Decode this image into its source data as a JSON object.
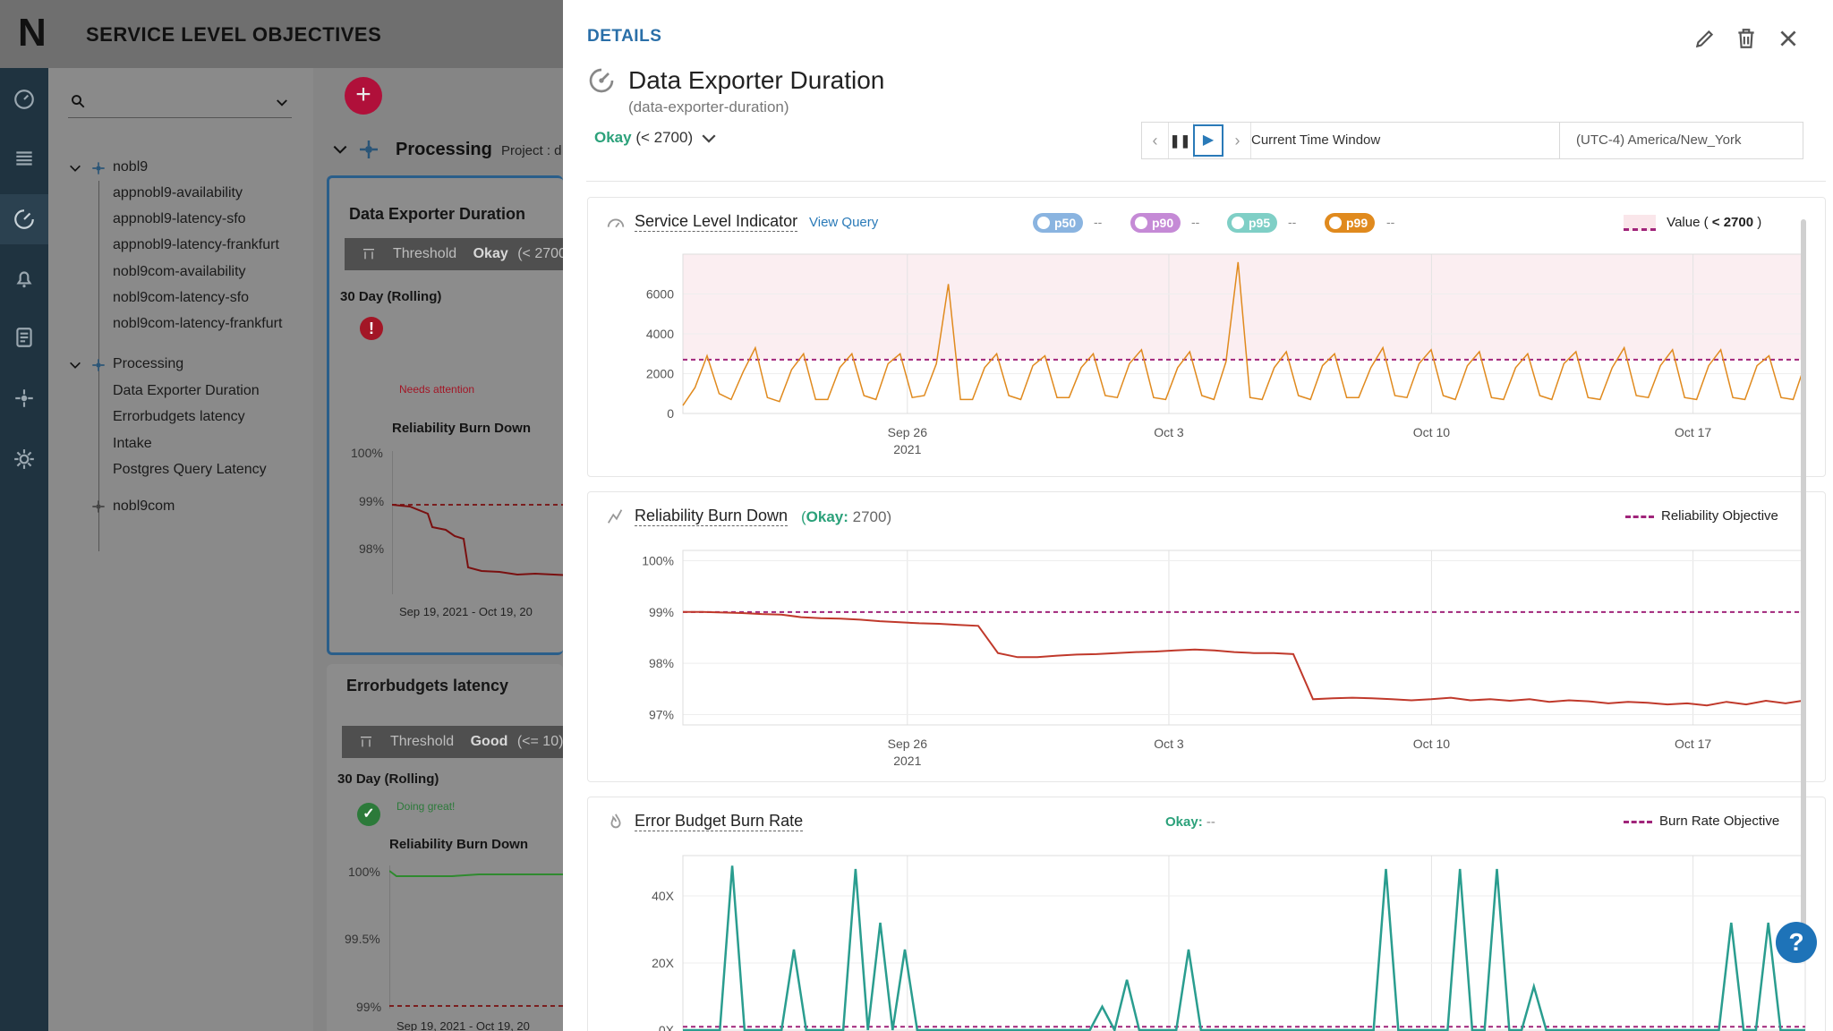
{
  "app": {
    "logo_letter": "N",
    "title": "SERVICE LEVEL OBJECTIVES",
    "rail_icons": [
      "dashboard-icon",
      "list-icon",
      "slo-gauge-icon",
      "bell-icon",
      "report-icon",
      "integrations-icon",
      "settings-icon"
    ]
  },
  "tree": {
    "groups": [
      {
        "label": "nobl9",
        "items": [
          "appnobl9-availability",
          "appnobl9-latency-sfo",
          "appnobl9-latency-frankfurt",
          "nobl9com-availability",
          "nobl9com-latency-sfo",
          "nobl9com-latency-frankfurt"
        ]
      },
      {
        "label": "Processing",
        "items": [
          "Data Exporter Duration",
          "Errorbudgets latency",
          "Intake",
          "Postgres Query Latency"
        ]
      },
      {
        "label": "nobl9com",
        "items": []
      }
    ]
  },
  "middle": {
    "add_label": "+",
    "section_title": "Processing",
    "project_label": "Project : d",
    "cards": [
      {
        "title": "Data Exporter Duration",
        "threshold_label": "Threshold",
        "threshold_value": "Okay",
        "threshold_cond": "(< 2700",
        "window": "30 Day (Rolling)",
        "status": "Needs attention",
        "chart_title": "Reliability Burn Down",
        "ticks": [
          "100%",
          "99%",
          "98%"
        ],
        "range": "Sep 19, 2021 - Oct 19, 20"
      },
      {
        "title": "Errorbudgets latency",
        "threshold_label": "Threshold",
        "threshold_value": "Good",
        "threshold_cond": "(<= 10)",
        "window": "30 Day (Rolling)",
        "status": "Doing great!",
        "chart_title": "Reliability Burn Down",
        "ticks": [
          "100%",
          "99.5%",
          "99%"
        ],
        "range": "Sep 19, 2021 - Oct 19, 20"
      }
    ]
  },
  "details": {
    "label": "DETAILS",
    "title": "Data Exporter Duration",
    "subtitle": "(data-exporter-duration)",
    "objective_status": "Okay",
    "objective_cond": "(< 2700)",
    "time_window": "Current Time Window",
    "timezone": "(UTC-4) America/New_York",
    "sli": {
      "title": "Service Level Indicator",
      "view_query": "View Query",
      "percentiles": [
        {
          "label": "p50",
          "color": "#8ab4e0",
          "value": "--"
        },
        {
          "label": "p90",
          "color": "#c58ad6",
          "value": "--"
        },
        {
          "label": "p95",
          "color": "#7fcfc6",
          "value": "--"
        },
        {
          "label": "p99",
          "color": "#e08a1e",
          "value": "--"
        }
      ],
      "legend_prefix": "Value (",
      "legend_value": "< 2700",
      "legend_suffix": ")"
    },
    "burn_down": {
      "title": "Reliability Burn Down",
      "status_prefix": "(",
      "status": "Okay:",
      "status_value": " 2700)",
      "legend": "Reliability Objective"
    },
    "burn_rate": {
      "title": "Error Budget Burn Rate",
      "status": "Okay:",
      "status_value": " --",
      "legend": "Burn Rate Objective"
    },
    "help": "?"
  },
  "chart_data": [
    {
      "type": "line",
      "title": "Service Level Indicator",
      "x_ticks": [
        "Sep 26\n2021",
        "Oct 3",
        "Oct 10",
        "Oct 17"
      ],
      "y_ticks": [
        0,
        2000,
        4000,
        6000
      ],
      "ylim": [
        0,
        8000
      ],
      "threshold": 2700,
      "series": [
        {
          "name": "p99",
          "color": "#e08a1e",
          "values": [
            400,
            1300,
            2900,
            1000,
            700,
            2100,
            3300,
            800,
            600,
            2200,
            3000,
            700,
            700,
            2300,
            3000,
            900,
            700,
            2500,
            3000,
            800,
            900,
            2500,
            6500,
            700,
            700,
            2300,
            3000,
            900,
            700,
            2400,
            2900,
            800,
            800,
            2300,
            3000,
            900,
            800,
            2500,
            3200,
            800,
            700,
            2300,
            3100,
            900,
            700,
            2600,
            7600,
            800,
            700,
            2300,
            3100,
            900,
            700,
            2400,
            3000,
            800,
            800,
            2300,
            3300,
            900,
            800,
            2500,
            3200,
            900,
            700,
            2400,
            3100,
            800,
            700,
            2300,
            3000,
            900,
            700,
            2500,
            3100,
            800,
            700,
            2300,
            3300,
            900,
            800,
            2400,
            3200,
            800,
            700,
            2400,
            3200,
            800,
            700,
            2400,
            2900,
            800,
            700,
            2500
          ]
        }
      ]
    },
    {
      "type": "line",
      "title": "Reliability Burn Down",
      "x_ticks": [
        "Sep 26\n2021",
        "Oct 3",
        "Oct 10",
        "Oct 17"
      ],
      "y_ticks": [
        "100%",
        "99%",
        "98%",
        "97%"
      ],
      "ylim": [
        96.8,
        100.2
      ],
      "objective": 99,
      "series": [
        {
          "name": "Reliability",
          "color": "#c0392b",
          "values": [
            99.0,
            99.0,
            98.99,
            98.98,
            98.96,
            98.95,
            98.9,
            98.88,
            98.87,
            98.85,
            98.82,
            98.8,
            98.78,
            98.77,
            98.75,
            98.73,
            98.2,
            98.12,
            98.12,
            98.15,
            98.17,
            98.18,
            98.2,
            98.22,
            98.23,
            98.25,
            98.27,
            98.25,
            98.22,
            98.2,
            98.2,
            98.18,
            97.3,
            97.32,
            97.33,
            97.32,
            97.3,
            97.28,
            97.3,
            97.33,
            97.28,
            97.3,
            97.27,
            97.3,
            97.25,
            97.28,
            97.26,
            97.22,
            97.25,
            97.23,
            97.2,
            97.22,
            97.18,
            97.25,
            97.2,
            97.27,
            97.22,
            97.28
          ]
        }
      ]
    },
    {
      "type": "line",
      "title": "Error Budget Burn Rate",
      "x_ticks": [],
      "y_ticks": [
        "0X",
        "20X",
        "40X"
      ],
      "ylim": [
        0,
        52
      ],
      "objective": 1,
      "series": [
        {
          "name": "Burn Rate",
          "color": "#2a9d8f",
          "values": [
            0,
            0,
            0,
            0,
            49,
            0,
            0,
            0,
            0,
            24,
            0,
            0,
            0,
            0,
            48,
            0,
            32,
            0,
            24,
            0,
            0,
            0,
            0,
            0,
            0,
            0,
            0,
            0,
            0,
            0,
            0,
            0,
            0,
            0,
            7,
            0,
            15,
            0,
            0,
            0,
            0,
            24,
            0,
            0,
            0,
            0,
            0,
            0,
            0,
            0,
            0,
            0,
            0,
            0,
            0,
            0,
            0,
            48,
            0,
            0,
            0,
            0,
            0,
            48,
            0,
            0,
            48,
            0,
            0,
            13,
            0,
            0,
            0,
            0,
            0,
            0,
            0,
            0,
            0,
            0,
            0,
            0,
            0,
            0,
            0,
            32,
            0,
            0,
            32,
            0,
            0,
            0
          ]
        }
      ]
    }
  ]
}
